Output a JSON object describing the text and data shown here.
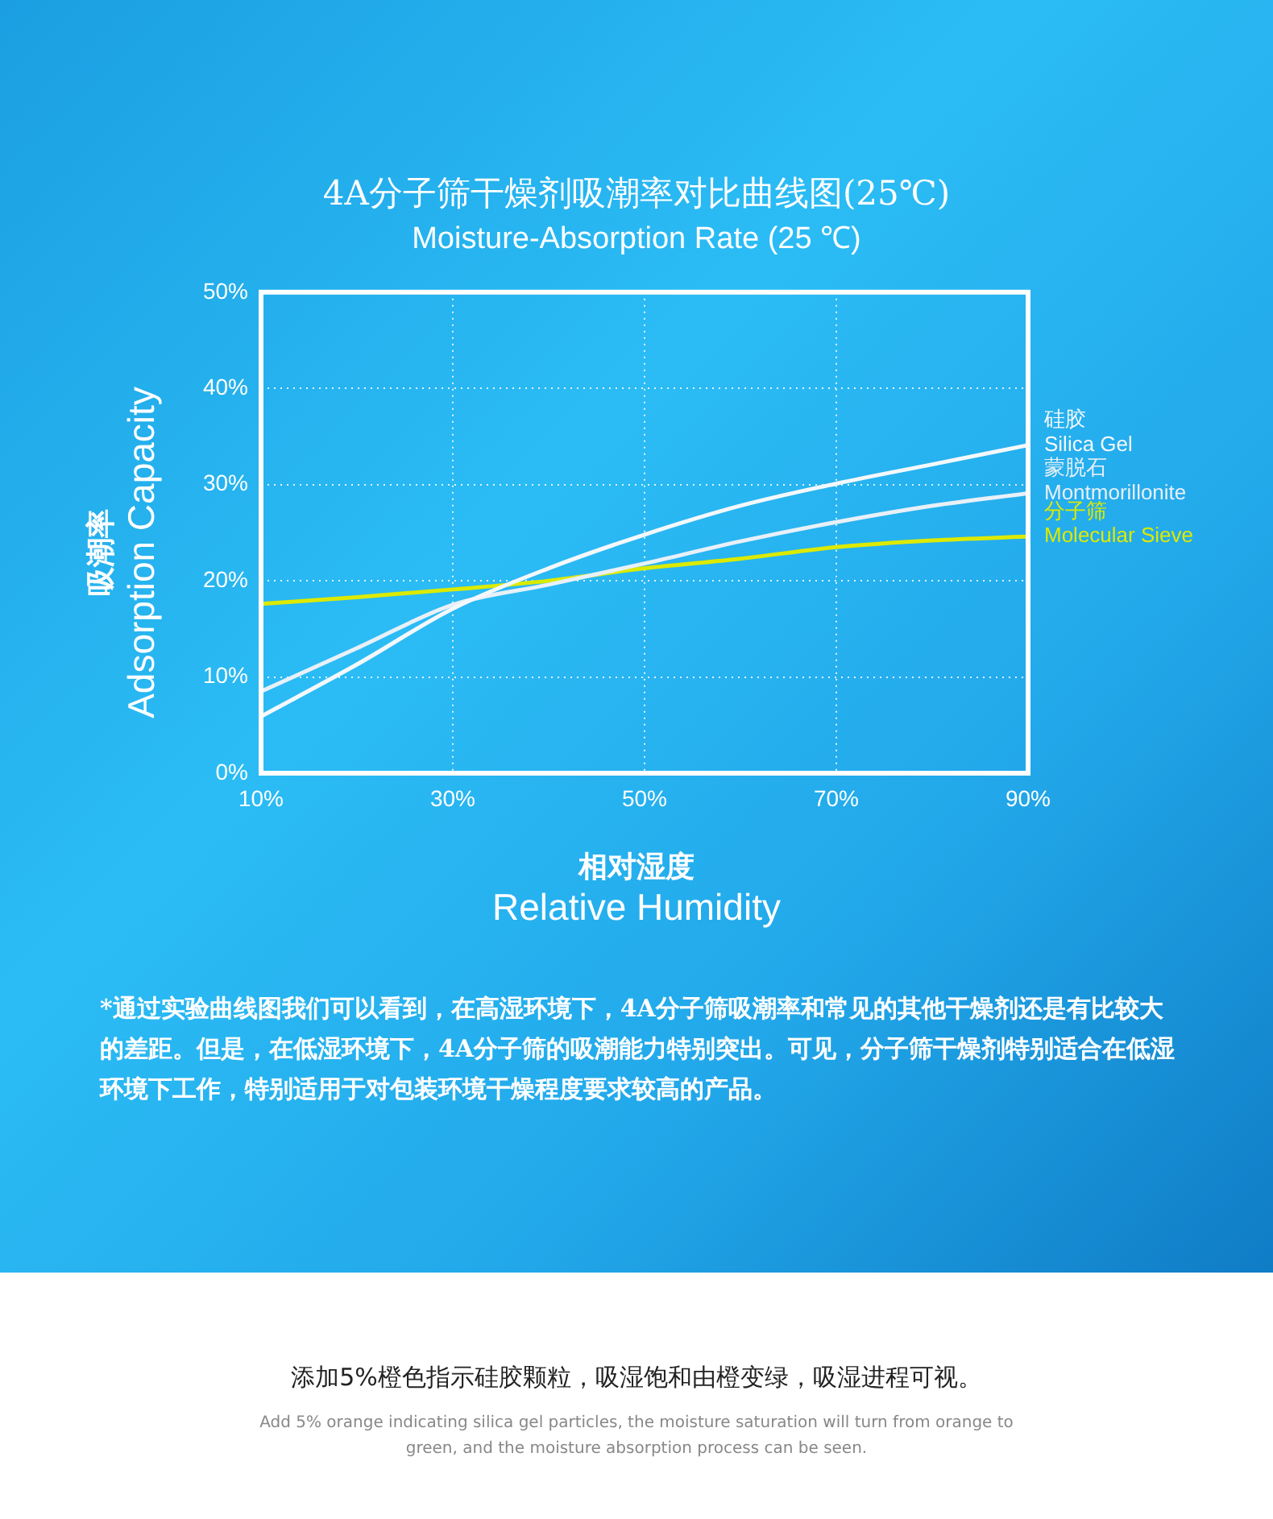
{
  "chart_data": {
    "type": "line",
    "title": "4A分子筛干燥剂吸潮率对比曲线图(25℃)",
    "subtitle": "Moisture-Absorption Rate (25 ℃)",
    "xlabel": "相对湿度\nRelative Humidity",
    "ylabel": "吸潮率\nAdsorption Capacity",
    "x": [
      10,
      20,
      30,
      40,
      50,
      60,
      70,
      80,
      90
    ],
    "xlim": [
      10,
      90
    ],
    "xticks": [
      {
        "value": 10,
        "label": "10%"
      },
      {
        "value": 30,
        "label": "30%"
      },
      {
        "value": 50,
        "label": "50%"
      },
      {
        "value": 70,
        "label": "70%"
      },
      {
        "value": 90,
        "label": "90%"
      }
    ],
    "ylim": [
      0,
      50
    ],
    "yticks": [
      {
        "value": 0,
        "label": "0%"
      },
      {
        "value": 10,
        "label": "10%"
      },
      {
        "value": 20,
        "label": "20%"
      },
      {
        "value": 30,
        "label": "30%"
      },
      {
        "value": 40,
        "label": "40%"
      },
      {
        "value": 50,
        "label": "50%"
      }
    ],
    "grid": true,
    "marker": "none",
    "series": [
      {
        "name": "硅胶\nSilica Gel",
        "color": "#f4f8fc",
        "values": [
          5.9,
          11.3,
          17.1,
          21.3,
          24.8,
          27.8,
          30.1,
          32.1,
          34.1
        ]
      },
      {
        "name": "蒙脱石\nMontmorillonite",
        "color": "#e8f0f8",
        "values": [
          8.5,
          13.0,
          17.5,
          19.6,
          21.8,
          24.1,
          26.1,
          27.8,
          29.1
        ]
      },
      {
        "name": "分子筛\nMolecular Sieve",
        "color": "#dcea00",
        "values": [
          17.6,
          18.3,
          19.1,
          20.0,
          21.3,
          22.3,
          23.5,
          24.2,
          24.6
        ]
      }
    ],
    "annotations": [
      "*通过实验曲线图我们可以看到，在高湿环境下，4A分子筛吸潮率和常见的其他干燥剂还是有比较大的差距。但是，在低湿环境下，4A分子筛的吸潮能力特别突出。可见，分子筛干燥剂特别适合在低湿环境下工作，特别适用于对包装环境干燥程度要求较高的产品。",
      "添加5%橙色指示硅胶颗粒，吸湿饱和由橙变绿，吸湿进程可视。",
      "Add 5% orange indicating silica gel particles, the moisture saturation will turn from orange to green, and the moisture absorption process can be seen."
    ]
  }
}
